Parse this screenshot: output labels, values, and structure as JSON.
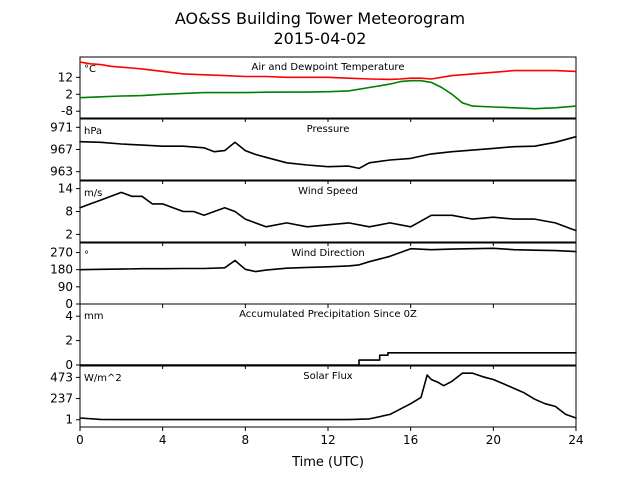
{
  "figure": {
    "title_line1": "AO&SS Building Tower Meteorogram",
    "title_line2": "2015-04-02",
    "xlabel": "Time (UTC)",
    "xticks": [
      0,
      4,
      8,
      12,
      16,
      20,
      24
    ],
    "xlim": [
      0,
      24
    ]
  },
  "chart_data": [
    {
      "type": "line",
      "title": "Air and Dewpoint Temperature",
      "ylabel": "°C",
      "ylim": [
        -12,
        24
      ],
      "yticks": [
        12,
        2,
        -8
      ],
      "grid": false,
      "series": [
        {
          "color": "#ff0000",
          "x": [
            0,
            0.5,
            1,
            1.5,
            2,
            2.5,
            3,
            4,
            5,
            6,
            7,
            8,
            9,
            10,
            11,
            12,
            13,
            14,
            15,
            15.5,
            16,
            16.5,
            17,
            18,
            19,
            20,
            21,
            22,
            23,
            24
          ],
          "y": [
            21,
            20,
            19.5,
            18.5,
            18,
            17.5,
            17,
            15.5,
            14,
            13.5,
            13,
            12.5,
            12.5,
            12,
            12,
            12,
            11.5,
            11,
            10.8,
            11,
            11.5,
            11.5,
            11,
            13,
            14,
            15,
            16,
            16,
            16,
            15.5
          ]
        },
        {
          "color": "#008000",
          "x": [
            0,
            1,
            2,
            3,
            4,
            5,
            6,
            7,
            8,
            9,
            10,
            11,
            12,
            13,
            14,
            15,
            15.5,
            16,
            16.5,
            17,
            17.5,
            18,
            18.5,
            19,
            20,
            21,
            22,
            23,
            24
          ],
          "y": [
            0,
            0.5,
            1,
            1.2,
            2,
            2.5,
            3,
            3,
            3,
            3.2,
            3.3,
            3.3,
            3.5,
            4,
            6,
            8,
            9.5,
            10,
            10,
            9,
            6,
            2,
            -3,
            -5,
            -5.5,
            -6,
            -6.5,
            -6,
            -5
          ]
        }
      ]
    },
    {
      "type": "line",
      "title": "Pressure",
      "ylabel": "hPa",
      "ylim": [
        961.5,
        972.5
      ],
      "yticks": [
        971,
        967,
        963
      ],
      "grid": false,
      "series": [
        {
          "color": "#000000",
          "x": [
            0,
            1,
            2,
            3,
            4,
            5,
            6,
            6.5,
            7,
            7.5,
            8,
            8.5,
            9,
            10,
            11,
            12,
            13,
            13.5,
            14,
            15,
            16,
            17,
            18,
            19,
            20,
            21,
            22,
            23,
            24
          ],
          "y": [
            968.4,
            968.3,
            968,
            967.8,
            967.6,
            967.6,
            967.3,
            966.6,
            966.8,
            968.3,
            966.8,
            966.1,
            965.6,
            964.6,
            964.2,
            963.9,
            964.0,
            963.6,
            964.6,
            965.1,
            965.4,
            966.2,
            966.6,
            966.9,
            967.2,
            967.5,
            967.6,
            968.3,
            969.3
          ]
        }
      ]
    },
    {
      "type": "line",
      "title": "Wind Speed",
      "ylabel": "m/s",
      "ylim": [
        0,
        16
      ],
      "yticks": [
        14,
        8,
        2
      ],
      "grid": false,
      "series": [
        {
          "color": "#000000",
          "x": [
            0,
            0.5,
            1,
            1.5,
            2,
            2.5,
            3,
            3.5,
            4,
            4.5,
            5,
            5.5,
            6,
            6.5,
            7,
            7.5,
            8,
            9,
            10,
            11,
            12,
            13,
            14,
            15,
            16,
            17,
            18,
            19,
            20,
            21,
            22,
            23,
            24
          ],
          "y": [
            9,
            10,
            11,
            12,
            13,
            12,
            12,
            10,
            10,
            9,
            8,
            8,
            7,
            8,
            9,
            8,
            6,
            4,
            5,
            4,
            4.5,
            5,
            4,
            5,
            4,
            7,
            7,
            6,
            6.5,
            6,
            6,
            5,
            3
          ]
        }
      ]
    },
    {
      "type": "line",
      "title": "Wind Direction",
      "ylabel": "°",
      "ylim": [
        0,
        320
      ],
      "yticks": [
        270,
        180,
        90,
        0
      ],
      "grid": false,
      "series": [
        {
          "color": "#000000",
          "x": [
            0,
            1,
            2,
            3,
            4,
            5,
            6,
            7,
            7.5,
            8,
            8.5,
            9,
            10,
            11,
            12,
            13,
            13.5,
            14,
            15,
            16,
            17,
            18,
            19,
            20,
            21,
            22,
            23,
            24
          ],
          "y": [
            180,
            182,
            183,
            185,
            185,
            186,
            186,
            190,
            228,
            182,
            170,
            178,
            188,
            192,
            195,
            200,
            205,
            222,
            250,
            290,
            285,
            288,
            290,
            292,
            285,
            282,
            280,
            275
          ]
        }
      ]
    },
    {
      "type": "line",
      "title": "Accumulated Precipitation Since 0Z",
      "ylabel": "mm",
      "ylim": [
        0,
        5
      ],
      "yticks": [
        4,
        2,
        0
      ],
      "grid": false,
      "series": [
        {
          "color": "#000000",
          "x": [
            0,
            13.5,
            13.5,
            14.5,
            14.5,
            14.9,
            14.9,
            24
          ],
          "y": [
            0,
            0,
            0.4,
            0.4,
            0.8,
            0.8,
            1,
            1
          ]
        }
      ]
    },
    {
      "type": "line",
      "title": "Solar Flux",
      "ylabel": "W/m^2",
      "ylim": [
        -80,
        600
      ],
      "yticks": [
        473,
        237,
        1
      ],
      "grid": false,
      "series": [
        {
          "color": "#000000",
          "x": [
            0,
            1,
            2,
            4,
            6,
            8,
            10,
            12,
            13,
            14,
            15,
            15.5,
            16,
            16.5,
            16.8,
            17,
            17.3,
            17.6,
            18,
            18.5,
            19,
            19.5,
            20,
            20.5,
            21,
            21.5,
            22,
            22.5,
            23,
            23.5,
            24
          ],
          "y": [
            20,
            5,
            2,
            2,
            2,
            2,
            2,
            2,
            3,
            10,
            60,
            120,
            180,
            250,
            500,
            450,
            420,
            380,
            430,
            520,
            520,
            480,
            450,
            400,
            350,
            300,
            230,
            180,
            150,
            60,
            20
          ]
        }
      ]
    }
  ]
}
